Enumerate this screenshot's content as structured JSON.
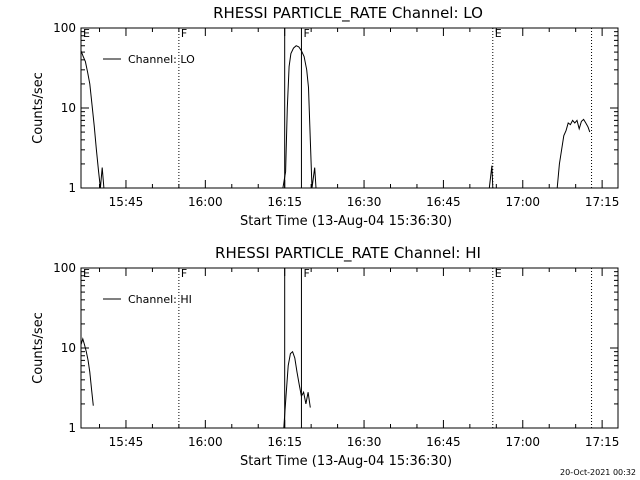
{
  "footer": "20-Oct-2021 00:32",
  "chart_data": [
    {
      "type": "line",
      "title": "RHESSI PARTICLE_RATE Channel: LO",
      "xlabel": "Start Time (13-Aug-04 15:36:30)",
      "ylabel": "Counts/sec",
      "yscale": "log",
      "ylim": [
        1,
        100
      ],
      "xlim": [
        "15:36:30",
        "17:18:00"
      ],
      "xtick_labels": [
        "15:45",
        "16:00",
        "16:15",
        "16:30",
        "16:45",
        "17:00",
        "17:15"
      ],
      "ytick_labels": [
        "1",
        "10",
        "100"
      ],
      "legend": "Channel: LO",
      "legend_position": "top-left",
      "markers": [
        {
          "time": "15:36:30",
          "label": "E",
          "style": "solid"
        },
        {
          "time": "15:55:00",
          "label": "F",
          "style": "dotted"
        },
        {
          "time": "16:15:00",
          "label": "",
          "style": "solid"
        },
        {
          "time": "16:18:10",
          "label": "F",
          "style": "solid"
        },
        {
          "time": "16:54:20",
          "label": "E",
          "style": "dotted"
        },
        {
          "time": "17:13:00",
          "label": "",
          "style": "dotted"
        }
      ],
      "series": [
        {
          "name": "Channel: LO",
          "segments": [
            [
              [
                "15:36:30",
                52
              ],
              [
                "15:36:55",
                44
              ],
              [
                "15:37:20",
                38
              ],
              [
                "15:37:45",
                28
              ],
              [
                "15:38:10",
                20
              ],
              [
                "15:38:35",
                11
              ],
              [
                "15:39:00",
                6
              ],
              [
                "15:39:25",
                3
              ],
              [
                "15:39:50",
                1.6
              ],
              [
                "15:40:10",
                1
              ],
              [
                "15:40:30",
                1.8
              ],
              [
                "15:40:50",
                1
              ]
            ],
            [
              [
                "16:14:40",
                1
              ],
              [
                "16:15:10",
                1.6
              ],
              [
                "16:15:30",
                10
              ],
              [
                "16:15:50",
                33
              ],
              [
                "16:16:10",
                48
              ],
              [
                "16:16:40",
                56
              ],
              [
                "16:17:10",
                60
              ],
              [
                "16:17:40",
                58
              ],
              [
                "16:18:10",
                52
              ],
              [
                "16:18:40",
                44
              ],
              [
                "16:19:10",
                30
              ],
              [
                "16:19:30",
                18
              ],
              [
                "16:19:50",
                4
              ],
              [
                "16:20:10",
                1
              ],
              [
                "16:20:40",
                1.8
              ],
              [
                "16:20:55",
                1
              ]
            ],
            [
              [
                "16:53:40",
                1
              ],
              [
                "16:54:10",
                1.9
              ],
              [
                "16:54:20",
                1
              ]
            ],
            [
              [
                "17:06:30",
                1
              ],
              [
                "17:06:55",
                2
              ],
              [
                "17:07:20",
                3
              ],
              [
                "17:07:45",
                4.5
              ],
              [
                "17:08:10",
                5.2
              ],
              [
                "17:08:35",
                6.5
              ],
              [
                "17:09:00",
                6.2
              ],
              [
                "17:09:25",
                7
              ],
              [
                "17:09:50",
                6.5
              ],
              [
                "17:10:15",
                7
              ],
              [
                "17:10:40",
                5.5
              ],
              [
                "17:11:05",
                6.8
              ],
              [
                "17:11:30",
                7.2
              ],
              [
                "17:11:55",
                6.5
              ],
              [
                "17:12:20",
                5.8
              ],
              [
                "17:12:40",
                5
              ]
            ]
          ]
        }
      ]
    },
    {
      "type": "line",
      "title": "RHESSI PARTICLE_RATE Channel: HI",
      "xlabel": "Start Time (13-Aug-04 15:36:30)",
      "ylabel": "Counts/sec",
      "yscale": "log",
      "ylim": [
        1,
        100
      ],
      "xlim": [
        "15:36:30",
        "17:18:00"
      ],
      "xtick_labels": [
        "15:45",
        "16:00",
        "16:15",
        "16:30",
        "16:45",
        "17:00",
        "17:15"
      ],
      "ytick_labels": [
        "1",
        "10",
        "100"
      ],
      "legend": "Channel: HI",
      "legend_position": "top-left",
      "markers": [
        {
          "time": "15:36:30",
          "label": "E",
          "style": "solid"
        },
        {
          "time": "15:55:00",
          "label": "F",
          "style": "dotted"
        },
        {
          "time": "16:15:00",
          "label": "",
          "style": "solid"
        },
        {
          "time": "16:18:10",
          "label": "F",
          "style": "solid"
        },
        {
          "time": "16:54:20",
          "label": "E",
          "style": "dotted"
        },
        {
          "time": "17:13:00",
          "label": "",
          "style": "dotted"
        }
      ],
      "series": [
        {
          "name": "Channel: HI",
          "segments": [
            [
              [
                "15:36:30",
                11
              ],
              [
                "15:36:50",
                13
              ],
              [
                "15:37:10",
                11
              ],
              [
                "15:37:30",
                9
              ],
              [
                "15:37:50",
                7
              ],
              [
                "15:38:10",
                5
              ],
              [
                "15:38:30",
                3
              ],
              [
                "15:38:50",
                1.9
              ]
            ],
            [
              [
                "16:14:50",
                1
              ],
              [
                "16:15:15",
                2.5
              ],
              [
                "16:15:40",
                6
              ],
              [
                "16:16:05",
                8.5
              ],
              [
                "16:16:30",
                9
              ],
              [
                "16:16:55",
                7.5
              ],
              [
                "16:17:20",
                5
              ],
              [
                "16:17:45",
                3.5
              ],
              [
                "16:18:10",
                2.5
              ],
              [
                "16:18:35",
                2.8
              ],
              [
                "16:19:00",
                2
              ],
              [
                "16:19:25",
                2.8
              ],
              [
                "16:19:50",
                1.8
              ]
            ]
          ]
        }
      ]
    }
  ]
}
